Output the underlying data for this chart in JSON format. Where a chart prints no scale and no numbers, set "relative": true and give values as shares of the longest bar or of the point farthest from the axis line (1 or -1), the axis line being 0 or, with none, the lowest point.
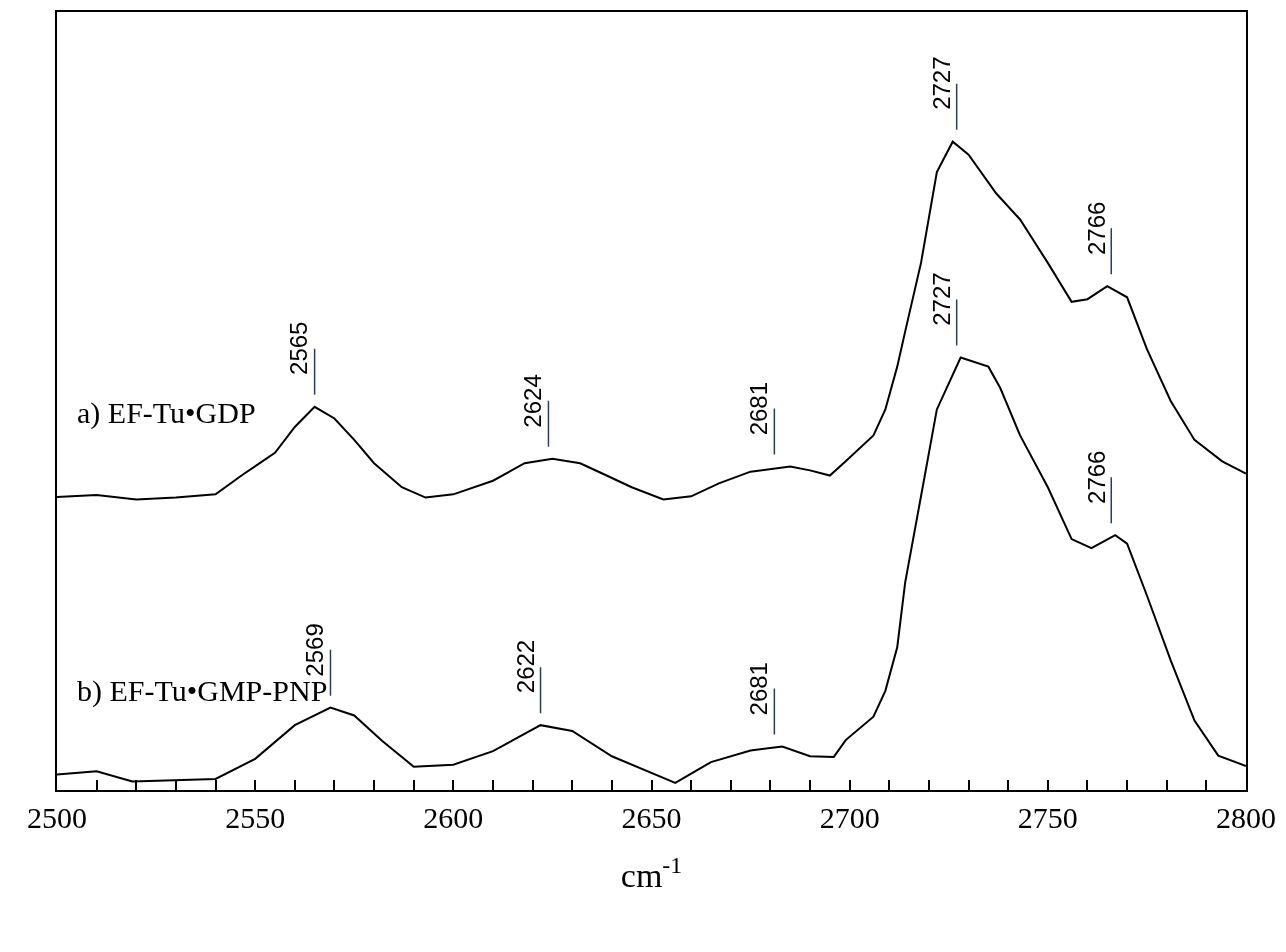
{
  "chart_data": {
    "type": "line",
    "relative": true,
    "xlabel": "cm$^{-1}$",
    "xlim": [
      2500,
      2800
    ],
    "xticks": [
      2500,
      {
        "value": 2510,
        "label": null
      },
      {
        "value": 2520,
        "label": null
      },
      {
        "value": 2530,
        "label": null
      },
      {
        "value": 2540,
        "label": null
      },
      2550,
      {
        "value": 2560,
        "label": null
      },
      {
        "value": 2570,
        "label": null
      },
      {
        "value": 2580,
        "label": null
      },
      {
        "value": 2590,
        "label": null
      },
      2600,
      {
        "value": 2610,
        "label": null
      },
      {
        "value": 2620,
        "label": null
      },
      {
        "value": 2630,
        "label": null
      },
      {
        "value": 2640,
        "label": null
      },
      2650,
      {
        "value": 2660,
        "label": null
      },
      {
        "value": 2670,
        "label": null
      },
      {
        "value": 2680,
        "label": null
      },
      {
        "value": 2690,
        "label": null
      },
      2700,
      {
        "value": 2710,
        "label": null
      },
      {
        "value": 2720,
        "label": null
      },
      {
        "value": 2730,
        "label": null
      },
      {
        "value": 2740,
        "label": null
      },
      2750,
      {
        "value": 2760,
        "label": null
      },
      {
        "value": 2770,
        "label": null
      },
      {
        "value": 2780,
        "label": null
      },
      {
        "value": 2790,
        "label": null
      },
      2800
    ],
    "tick_labels": "x",
    "legend": false,
    "marker": "none",
    "line_style": "solid",
    "series": [
      {
        "name": "a) EF-Tu•GDP",
        "color": "#000000",
        "x": [
          2500,
          2510,
          2520,
          2530,
          2540,
          2547,
          2555,
          2560,
          2565,
          2570,
          2575,
          2580,
          2587,
          2593,
          2600,
          2610,
          2618,
          2625,
          2632,
          2638,
          2645,
          2653,
          2660,
          2667,
          2675,
          2685,
          2690,
          2695,
          2699,
          2706,
          2709,
          2712,
          2714,
          2718,
          2722,
          2726,
          2730,
          2737,
          2743,
          2750,
          2756,
          2760,
          2765,
          2770,
          2775,
          2781,
          2787,
          2794,
          2800
        ],
        "values": [
          0.452,
          0.455,
          0.448,
          0.451,
          0.456,
          0.487,
          0.52,
          0.56,
          0.591,
          0.573,
          0.54,
          0.504,
          0.467,
          0.451,
          0.456,
          0.477,
          0.504,
          0.511,
          0.504,
          0.487,
          0.467,
          0.448,
          0.453,
          0.473,
          0.491,
          0.499,
          0.493,
          0.485,
          0.507,
          0.547,
          0.587,
          0.653,
          0.707,
          0.813,
          0.953,
          1.0,
          0.98,
          0.92,
          0.88,
          0.813,
          0.753,
          0.757,
          0.777,
          0.76,
          0.68,
          0.6,
          0.54,
          0.507,
          0.488
        ]
      },
      {
        "name": "b) EF-Tu•GMP-PNP",
        "color": "#000000",
        "x": [
          2500,
          2510,
          2519,
          2540,
          2550,
          2560,
          2569,
          2575,
          2582,
          2590,
          2600,
          2610,
          2622,
          2630,
          2640,
          2656,
          2665,
          2675,
          2683,
          2690,
          2696,
          2699,
          2706,
          2709,
          2712,
          2714,
          2718,
          2722,
          2728,
          2735,
          2738,
          2743,
          2750,
          2756,
          2761,
          2767,
          2770,
          2775,
          2781,
          2787,
          2793,
          2800
        ],
        "values": [
          0.024,
          0.029,
          0.013,
          0.017,
          0.048,
          0.1,
          0.127,
          0.115,
          0.076,
          0.036,
          0.039,
          0.06,
          0.1,
          0.091,
          0.052,
          0.011,
          0.043,
          0.061,
          0.067,
          0.052,
          0.051,
          0.077,
          0.113,
          0.153,
          0.22,
          0.32,
          0.453,
          0.587,
          0.667,
          0.653,
          0.62,
          0.547,
          0.467,
          0.387,
          0.373,
          0.393,
          0.38,
          0.3,
          0.2,
          0.107,
          0.053,
          0.037
        ]
      }
    ],
    "annotations": [
      {
        "text": "2565",
        "x": 2565,
        "y": 0.591
      },
      {
        "text": "2624",
        "x": 2624,
        "y": 0.511
      },
      {
        "text": "2681",
        "x": 2681,
        "y": 0.499
      },
      {
        "text": "2727",
        "x": 2727,
        "y": 1.0
      },
      {
        "text": "2766",
        "x": 2766,
        "y": 0.777
      },
      {
        "text": "2569",
        "x": 2569,
        "y": 0.127
      },
      {
        "text": "2622",
        "x": 2622,
        "y": 0.1
      },
      {
        "text": "2681",
        "x": 2681,
        "y": 0.067
      },
      {
        "text": "2727",
        "x": 2727,
        "y": 0.667
      },
      {
        "text": "2766",
        "x": 2766,
        "y": 0.393
      }
    ]
  }
}
